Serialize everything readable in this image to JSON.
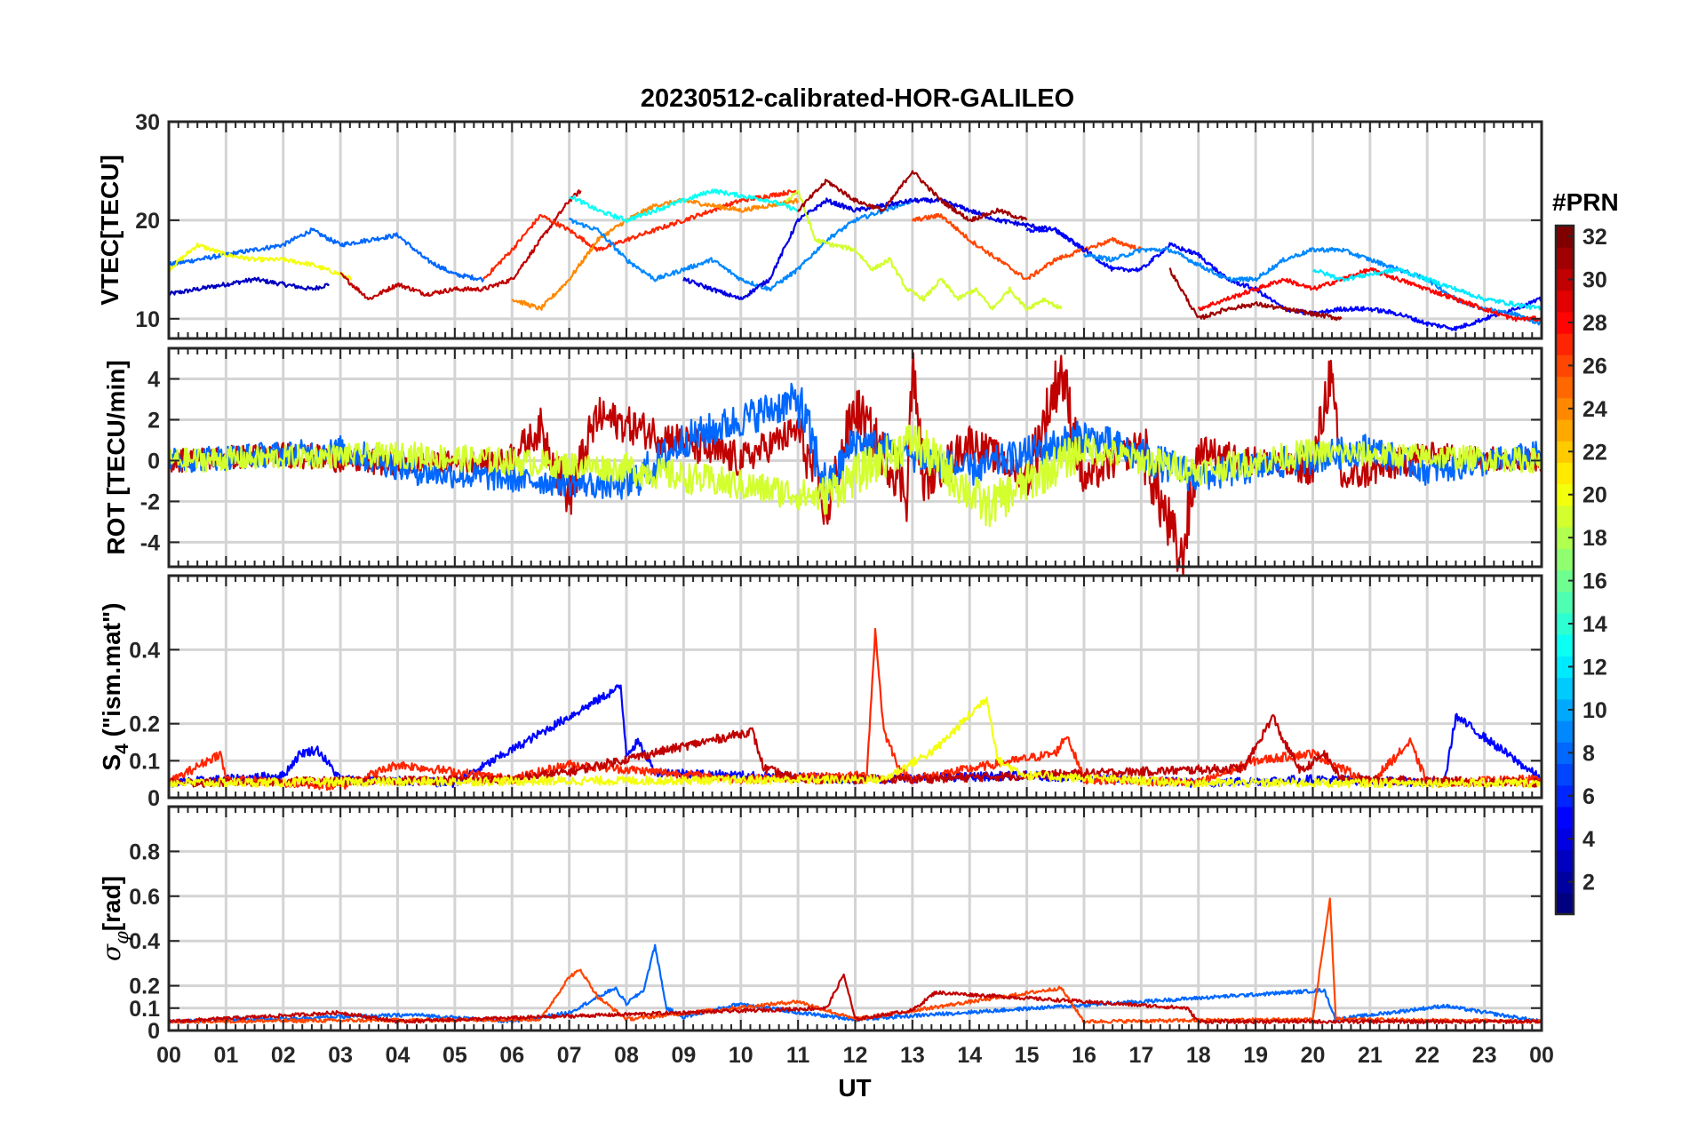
{
  "figure": {
    "title": "20230512-calibrated-HOR-GALILEO",
    "xlabel": "UT",
    "colorbar_label": "#PRN"
  },
  "chart_data": [
    {
      "type": "line",
      "name": "vtec",
      "ylabel": "VTEC[TECU]",
      "ylim": [
        8,
        30
      ],
      "yticks": [
        10,
        20,
        30
      ],
      "yticklabels": [
        "10",
        "20",
        "30"
      ],
      "xlim": [
        0,
        24
      ],
      "grid": true,
      "series": [
        {
          "prn": 3,
          "x": [
            0,
            0.5,
            1,
            1.5,
            2,
            2.5,
            2.8
          ],
          "y": [
            12.5,
            13,
            13.5,
            14,
            13.5,
            13,
            13.5
          ]
        },
        {
          "prn": 8,
          "x": [
            0,
            1,
            2,
            2.5,
            3,
            3.5,
            4,
            4.5,
            5,
            5.5
          ],
          "y": [
            15.5,
            16.5,
            17.5,
            19,
            17.5,
            18,
            18.5,
            16,
            14.5,
            14
          ]
        },
        {
          "prn": 20,
          "x": [
            0,
            0.5,
            1,
            1.5,
            2,
            2.5,
            3,
            3.2
          ],
          "y": [
            15,
            17.5,
            16.5,
            16,
            16,
            15.5,
            14.5,
            14
          ]
        },
        {
          "prn": 30,
          "x": [
            3,
            3.5,
            4,
            4.5,
            5,
            5.5,
            6,
            6.5,
            7,
            7.2
          ],
          "y": [
            14.5,
            12,
            13.5,
            12.5,
            13,
            13,
            14,
            18,
            22,
            23
          ]
        },
        {
          "prn": 27,
          "x": [
            5.5,
            6,
            6.5,
            7,
            7.5,
            8,
            8.5,
            9,
            9.5,
            10,
            10.5,
            11
          ],
          "y": [
            14,
            17,
            20.5,
            19,
            17,
            18,
            19,
            20,
            21,
            22,
            22.5,
            23
          ]
        },
        {
          "prn": 24,
          "x": [
            6,
            6.5,
            7,
            7.5,
            8,
            8.5,
            9,
            9.5,
            10,
            10.5,
            11
          ],
          "y": [
            12,
            11,
            14,
            18,
            20,
            21.5,
            22,
            21.5,
            21,
            21.5,
            22
          ]
        },
        {
          "prn": 13,
          "x": [
            7,
            7.5,
            8,
            8.5,
            9,
            9.5,
            10,
            10.5,
            11
          ],
          "y": [
            22.5,
            21,
            20,
            21,
            22,
            23,
            22.5,
            22,
            21
          ]
        },
        {
          "prn": 9,
          "x": [
            7,
            7.5,
            8,
            8.5,
            9,
            9.5,
            10,
            10.5,
            11,
            11.5,
            12,
            12.5,
            13
          ],
          "y": [
            20,
            19,
            16,
            14,
            15,
            16,
            14,
            13,
            15,
            18,
            20,
            21,
            22
          ]
        },
        {
          "prn": 4,
          "x": [
            9,
            9.5,
            10,
            10.5,
            11,
            11.5,
            12,
            12.5,
            13,
            13.5,
            14,
            14.5,
            15,
            15.5,
            16
          ],
          "y": [
            14,
            13,
            12,
            14,
            20,
            22,
            21,
            21.5,
            22,
            22,
            21,
            20,
            19.5,
            19,
            17
          ]
        },
        {
          "prn": 19,
          "x": [
            10.8,
            11,
            11.3,
            11.6,
            12,
            12.3,
            12.6,
            12.9,
            13.2,
            13.5,
            13.8,
            14.1,
            14.4,
            14.7,
            15,
            15.3,
            15.6
          ],
          "y": [
            22,
            23,
            18,
            17.5,
            17,
            15,
            16,
            13,
            12,
            14,
            12,
            13,
            11,
            13,
            11,
            12,
            11
          ]
        },
        {
          "prn": 31,
          "x": [
            11,
            11.5,
            12,
            12.5,
            13,
            13.5,
            14,
            14.5,
            15
          ],
          "y": [
            21,
            24,
            22,
            21,
            25,
            22,
            20,
            21,
            20
          ]
        },
        {
          "prn": 26,
          "x": [
            13,
            13.5,
            14,
            14.5,
            15,
            15.5,
            16,
            16.5,
            17
          ],
          "y": [
            20,
            20.5,
            18,
            16,
            14,
            16,
            17,
            18,
            17
          ]
        },
        {
          "prn": 5,
          "x": [
            15,
            15.5,
            16,
            16.5,
            17,
            17.5,
            18,
            18.5,
            19,
            19.5,
            20,
            20.5,
            21,
            21.5,
            22,
            22.5,
            23,
            23.5,
            24
          ],
          "y": [
            19,
            19,
            17,
            15,
            15,
            17.5,
            16.5,
            14,
            13,
            11,
            10.5,
            11,
            11,
            10.5,
            9.5,
            9,
            10,
            11,
            12
          ]
        },
        {
          "prn": 9,
          "x": [
            16,
            16.5,
            17,
            17.5,
            18,
            18.5,
            19,
            19.5,
            20,
            20.5,
            21,
            21.5,
            22,
            22.5,
            23,
            23.5,
            24
          ],
          "y": [
            16.5,
            16,
            17,
            17,
            15.5,
            14,
            14,
            16,
            17,
            17,
            16,
            15,
            14,
            12,
            11,
            10.5,
            9.5
          ]
        },
        {
          "prn": 28,
          "x": [
            18,
            18.5,
            19,
            19.5,
            20,
            20.5,
            21,
            21.5,
            22,
            22.5,
            23,
            23.5,
            24
          ],
          "y": [
            11,
            12,
            13,
            14,
            13,
            14,
            15,
            14,
            13,
            12,
            11,
            10,
            10
          ]
        },
        {
          "prn": 31,
          "x": [
            17.5,
            18,
            18.5,
            19,
            19.5,
            20,
            20.5
          ],
          "y": [
            15,
            10,
            11,
            11.5,
            11,
            10.5,
            10
          ]
        },
        {
          "prn": 12,
          "x": [
            20,
            20.5,
            21,
            21.5,
            22,
            22.5,
            23,
            23.5,
            24
          ],
          "y": [
            15,
            14,
            14.5,
            15,
            14,
            13,
            12,
            11.5,
            11
          ]
        }
      ]
    },
    {
      "type": "line",
      "name": "rot",
      "ylabel": "ROT [TECU/min]",
      "ylim": [
        -5.2,
        5.5
      ],
      "yticks": [
        -4,
        -2,
        0,
        2,
        4
      ],
      "yticklabels": [
        "-4",
        "-2",
        "0",
        "2",
        "4"
      ],
      "xlim": [
        0,
        24
      ],
      "grid": true,
      "series": [
        {
          "prn": 30,
          "x": [
            0,
            2,
            4,
            5.9,
            6.5,
            7,
            7.5,
            10,
            11,
            11.5,
            12,
            12.9,
            13,
            13.2,
            14,
            15,
            15.6,
            16,
            17,
            17.7,
            18,
            20,
            20.3,
            20.5,
            22,
            24
          ],
          "y": [
            0,
            0.3,
            -0.2,
            0,
            1.5,
            -1.8,
            2.2,
            0,
            1.5,
            -2.5,
            2.6,
            -1.5,
            4.6,
            -1.2,
            1,
            -0.8,
            4.5,
            -1,
            0.8,
            -5,
            0.5,
            -0.5,
            4.3,
            -1,
            0.3,
            0
          ]
        },
        {
          "prn": 8,
          "x": [
            0,
            3,
            4.5,
            8,
            9,
            11,
            11.5,
            12,
            14,
            16,
            18,
            21,
            22,
            24
          ],
          "y": [
            0,
            0.5,
            -0.6,
            -1.3,
            1,
            3,
            -1.5,
            1,
            -0.5,
            1.2,
            -0.8,
            0.6,
            -0.5,
            0.3
          ]
        },
        {
          "prn": 19,
          "x": [
            0,
            4,
            8,
            11.4,
            13,
            14.3,
            16,
            18,
            20,
            24
          ],
          "y": [
            0,
            0.3,
            -0.4,
            -1.8,
            1,
            -2.3,
            0.6,
            -0.5,
            0.4,
            0
          ]
        }
      ]
    },
    {
      "type": "line",
      "name": "s4",
      "ylabel": "S4 (\"ism.mat\")",
      "ylim": [
        0,
        0.6
      ],
      "yticks": [
        0,
        0.1,
        0.2,
        0.4
      ],
      "yticklabels": [
        "0",
        "0.1",
        "0.2",
        "0.4"
      ],
      "xlim": [
        0,
        24
      ],
      "grid": true,
      "series": [
        {
          "prn": 5,
          "x": [
            0,
            2,
            2.3,
            2.6,
            3,
            5,
            7.9,
            8,
            8.2,
            8.5,
            10,
            12,
            15,
            18,
            20,
            22.3,
            22.5,
            24
          ],
          "y": [
            0.04,
            0.06,
            0.12,
            0.13,
            0.05,
            0.04,
            0.3,
            0.12,
            0.15,
            0.07,
            0.06,
            0.05,
            0.06,
            0.04,
            0.05,
            0.04,
            0.22,
            0.05
          ]
        },
        {
          "prn": 27,
          "x": [
            0,
            0.9,
            1,
            3,
            4,
            6,
            7,
            10,
            12.2,
            12.35,
            12.5,
            12.8,
            13,
            15.5,
            15.7,
            16,
            18,
            19,
            20,
            21,
            21.7,
            22,
            24
          ],
          "y": [
            0.04,
            0.12,
            0.05,
            0.03,
            0.09,
            0.05,
            0.09,
            0.05,
            0.06,
            0.45,
            0.18,
            0.07,
            0.05,
            0.12,
            0.17,
            0.05,
            0.04,
            0.1,
            0.12,
            0.04,
            0.15,
            0.04,
            0.05
          ]
        },
        {
          "prn": 30,
          "x": [
            0,
            6,
            7,
            10.2,
            10.4,
            11,
            13,
            18.8,
            19.3,
            19.5,
            19.8,
            20.2,
            20.5,
            24
          ],
          "y": [
            0.04,
            0.05,
            0.07,
            0.18,
            0.08,
            0.05,
            0.05,
            0.08,
            0.22,
            0.15,
            0.07,
            0.12,
            0.05,
            0.04
          ]
        },
        {
          "prn": 20,
          "x": [
            0,
            12.5,
            13.4,
            14.3,
            14.5,
            15,
            16.4,
            18,
            24
          ],
          "y": [
            0.04,
            0.05,
            0.13,
            0.27,
            0.1,
            0.06,
            0.05,
            0.04,
            0.04
          ]
        }
      ]
    },
    {
      "type": "line",
      "name": "sigma_phi",
      "ylabel": "σφ [rad]",
      "ylim": [
        0,
        1.0
      ],
      "yticks": [
        0,
        0.1,
        0.2,
        0.4,
        0.6,
        0.8
      ],
      "yticklabels": [
        "0",
        "0.1",
        "0.2",
        "0.4",
        "0.6",
        "0.8"
      ],
      "xlim": [
        0,
        24
      ],
      "grid": true,
      "series": [
        {
          "prn": 8,
          "x": [
            0,
            4.3,
            6,
            7,
            7.8,
            8,
            8.3,
            8.5,
            8.7,
            9,
            10,
            11,
            12,
            20.2,
            20.4,
            22.3,
            24
          ],
          "y": [
            0.04,
            0.07,
            0.04,
            0.08,
            0.19,
            0.12,
            0.18,
            0.38,
            0.1,
            0.06,
            0.12,
            0.08,
            0.05,
            0.18,
            0.05,
            0.11,
            0.04
          ]
        },
        {
          "prn": 26,
          "x": [
            0,
            6.5,
            7,
            7.2,
            7.5,
            8,
            11,
            12,
            15.6,
            16,
            20,
            20.3,
            20.4,
            24
          ],
          "y": [
            0.04,
            0.05,
            0.24,
            0.27,
            0.15,
            0.05,
            0.13,
            0.05,
            0.19,
            0.04,
            0.05,
            0.59,
            0.05,
            0.04
          ]
        },
        {
          "prn": 30,
          "x": [
            0,
            3,
            4,
            11.5,
            11.8,
            12,
            13,
            13.4,
            17.8,
            18,
            24
          ],
          "y": [
            0.04,
            0.08,
            0.04,
            0.1,
            0.25,
            0.05,
            0.09,
            0.17,
            0.1,
            0.04,
            0.04
          ]
        }
      ]
    }
  ],
  "x_axis": {
    "ticklabels": [
      "00",
      "01",
      "02",
      "03",
      "04",
      "05",
      "06",
      "07",
      "08",
      "09",
      "10",
      "11",
      "12",
      "13",
      "14",
      "15",
      "16",
      "17",
      "18",
      "19",
      "20",
      "21",
      "22",
      "23",
      "00"
    ]
  },
  "colorbar": {
    "range": [
      1,
      32
    ],
    "ticks": [
      2,
      4,
      6,
      8,
      10,
      12,
      14,
      16,
      18,
      20,
      22,
      24,
      26,
      28,
      30,
      32
    ],
    "ticklabels": [
      "2",
      "4",
      "6",
      "8",
      "10",
      "12",
      "14",
      "16",
      "18",
      "20",
      "22",
      "24",
      "26",
      "28",
      "30",
      "32"
    ]
  }
}
